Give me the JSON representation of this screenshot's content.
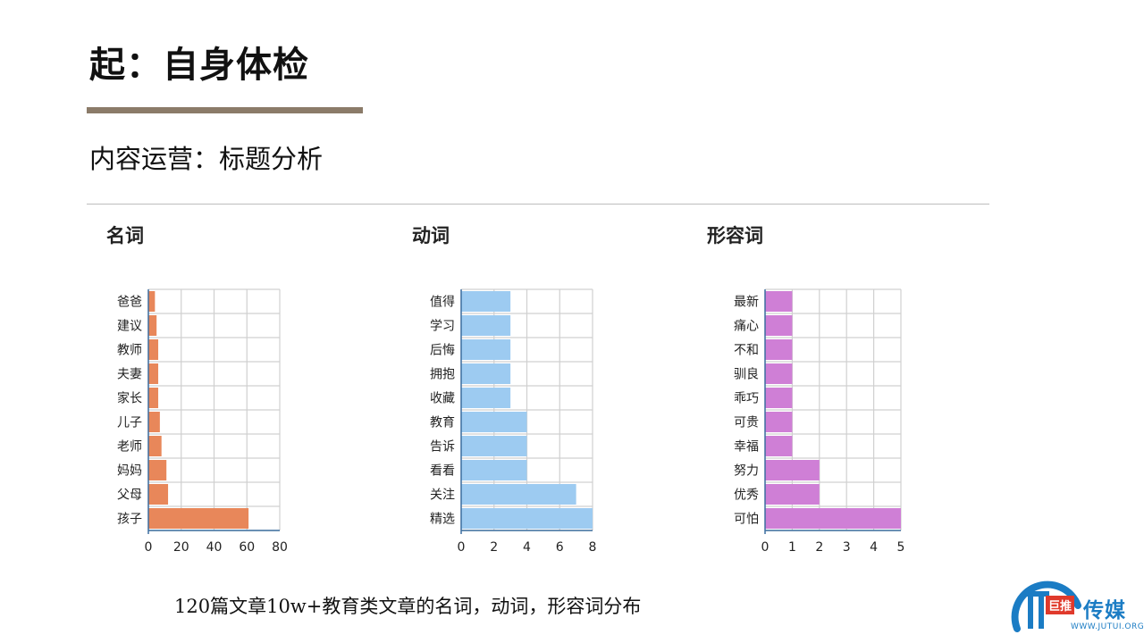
{
  "header": {
    "title": "起：自身体检",
    "subtitle": "内容运营：标题分析"
  },
  "caption": "120篇文章10w+教育类文章的名词，动词，形容词分布",
  "logo": {
    "chip": "巨推",
    "name": "传媒",
    "url": "WWW.JUTUI.ORG"
  },
  "colors": {
    "noun": "#e8875a",
    "verb": "#9dcbf1",
    "adjective": "#cf7fd6",
    "grid": "#d0d0d0",
    "brand": "#1b7cc4"
  },
  "chart_data": [
    {
      "type": "bar",
      "orientation": "horizontal",
      "title": "名词",
      "categories": [
        "爸爸",
        "建议",
        "教师",
        "夫妻",
        "家长",
        "儿子",
        "老师",
        "妈妈",
        "父母",
        "孩子"
      ],
      "values": [
        4,
        5,
        6,
        6,
        6,
        7,
        8,
        11,
        12,
        61
      ],
      "xlim": [
        0,
        80
      ],
      "xticks": [
        0,
        20,
        40,
        60,
        80
      ],
      "grid": true
    },
    {
      "type": "bar",
      "orientation": "horizontal",
      "title": "动词",
      "categories": [
        "值得",
        "学习",
        "后悔",
        "拥抱",
        "收藏",
        "教育",
        "告诉",
        "看看",
        "关注",
        "精选"
      ],
      "values": [
        3,
        3,
        3,
        3,
        3,
        4,
        4,
        4,
        7,
        8
      ],
      "xlim": [
        0,
        8
      ],
      "xticks": [
        0,
        2,
        4,
        6,
        8
      ],
      "grid": true
    },
    {
      "type": "bar",
      "orientation": "horizontal",
      "title": "形容词",
      "categories": [
        "最新",
        "痛心",
        "不和",
        "驯良",
        "乖巧",
        "可贵",
        "幸福",
        "努力",
        "优秀",
        "可怕"
      ],
      "values": [
        1,
        1,
        1,
        1,
        1,
        1,
        1,
        2,
        2,
        5
      ],
      "xlim": [
        0,
        5
      ],
      "xticks": [
        0,
        1,
        2,
        3,
        4,
        5
      ],
      "grid": true
    }
  ]
}
